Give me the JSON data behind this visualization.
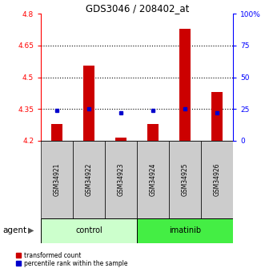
{
  "title": "GDS3046 / 208402_at",
  "samples": [
    "GSM34921",
    "GSM34922",
    "GSM34923",
    "GSM34924",
    "GSM34925",
    "GSM34926"
  ],
  "red_values": [
    4.28,
    4.555,
    4.215,
    4.28,
    4.73,
    4.43
  ],
  "blue_values_pct": [
    24,
    25,
    22,
    24,
    25,
    22
  ],
  "ylim": [
    4.2,
    4.8
  ],
  "y_ticks": [
    4.2,
    4.35,
    4.5,
    4.65,
    4.8
  ],
  "y_tick_labels": [
    "4.2",
    "4.35",
    "4.5",
    "4.65",
    "4.8"
  ],
  "y2_ticks": [
    0,
    25,
    50,
    75,
    100
  ],
  "y2_tick_labels": [
    "0",
    "25",
    "50",
    "75",
    "100%"
  ],
  "hlines": [
    4.35,
    4.5,
    4.65
  ],
  "control_label": "control",
  "imatinib_label": "imatinib",
  "agent_label": "agent",
  "legend_red": "transformed count",
  "legend_blue": "percentile rank within the sample",
  "bar_color": "#cc0000",
  "blue_color": "#0000cc",
  "control_bg": "#ccffcc",
  "imatinib_bg": "#44ee44",
  "sample_bg": "#cccccc",
  "bar_width": 0.35,
  "bar_bottom": 4.2
}
